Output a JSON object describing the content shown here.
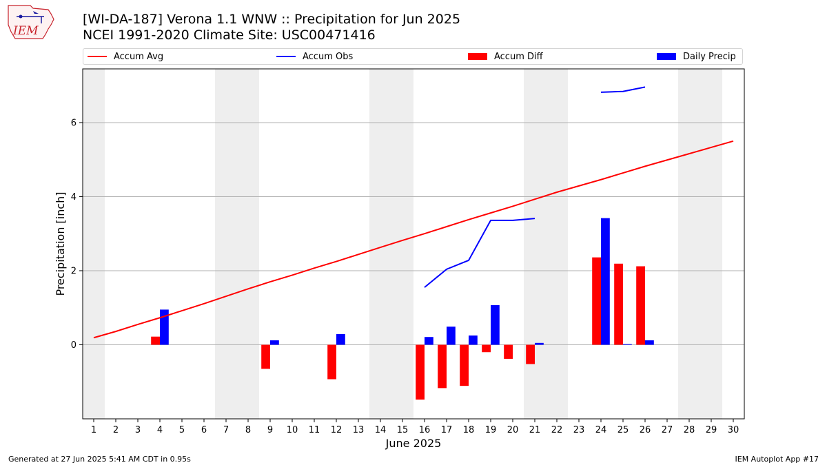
{
  "header": {
    "title_line1": "[WI-DA-187] Verona 1.1 WNW :: Precipitation for Jun 2025",
    "title_line2": "NCEI 1991-2020 Climate Site: USC00471416"
  },
  "logo": {
    "text": "IEM"
  },
  "legend": {
    "items": [
      {
        "label": "Accum Avg",
        "color": "#ff0000",
        "kind": "line"
      },
      {
        "label": "Accum Obs",
        "color": "#0000ff",
        "kind": "line"
      },
      {
        "label": "Accum Diff",
        "color": "#ff0000",
        "kind": "patch"
      },
      {
        "label": "Daily Precip",
        "color": "#0000ff",
        "kind": "patch"
      }
    ]
  },
  "footer": {
    "left": "Generated at 27 Jun 2025 5:41 AM CDT in 0.95s",
    "right": "IEM Autoplot App #17"
  },
  "chart_data": {
    "type": "bar",
    "xlabel": "June 2025",
    "ylabel": "Precipitation [inch]",
    "days": [
      1,
      2,
      3,
      4,
      5,
      6,
      7,
      8,
      9,
      10,
      11,
      12,
      13,
      14,
      15,
      16,
      17,
      18,
      19,
      20,
      21,
      22,
      23,
      24,
      25,
      26,
      27,
      28,
      29,
      30
    ],
    "xlim": [
      0.5,
      30.5
    ],
    "ylim": [
      -2.0,
      7.45
    ],
    "yticks": [
      0,
      2,
      4,
      6
    ],
    "grid": "horizontal",
    "weekend_shading": [
      [
        0.5,
        1.5
      ],
      [
        6.5,
        8.5
      ],
      [
        13.5,
        15.5
      ],
      [
        20.5,
        22.5
      ],
      [
        27.5,
        29.5
      ]
    ],
    "series": [
      {
        "name": "Accum Avg",
        "type": "line",
        "color": "#ff0000",
        "x": [
          1,
          2,
          3,
          4,
          5,
          6,
          7,
          8,
          9,
          10,
          11,
          12,
          13,
          14,
          15,
          16,
          17,
          18,
          19,
          20,
          21,
          22,
          23,
          24,
          25,
          26,
          27,
          28,
          29,
          30
        ],
        "values": [
          0.19,
          0.36,
          0.55,
          0.73,
          0.92,
          1.11,
          1.31,
          1.51,
          1.7,
          1.88,
          2.07,
          2.25,
          2.44,
          2.63,
          2.82,
          3.0,
          3.19,
          3.38,
          3.56,
          3.74,
          3.93,
          4.12,
          4.29,
          4.46,
          4.64,
          4.82,
          4.99,
          5.16,
          5.33,
          5.5
        ]
      },
      {
        "name": "Accum Obs",
        "type": "line",
        "color": "#0000ff",
        "segments": [
          {
            "x": [
              16,
              17,
              18,
              19,
              20,
              21
            ],
            "values": [
              1.55,
              2.04,
              2.28,
              3.36,
              3.36,
              3.41
            ]
          },
          {
            "x": [
              24,
              25,
              26
            ],
            "values": [
              6.82,
              6.84,
              6.96
            ]
          }
        ]
      },
      {
        "name": "Accum Diff",
        "type": "bar",
        "color": "#ff0000",
        "x": [
          4,
          9,
          12,
          16,
          17,
          18,
          19,
          20,
          21,
          24,
          25,
          26
        ],
        "values": [
          0.22,
          -0.65,
          -0.93,
          -1.48,
          -1.17,
          -1.11,
          -0.2,
          -0.38,
          -0.52,
          2.36,
          2.19,
          2.12
        ]
      },
      {
        "name": "Daily Precip",
        "type": "bar",
        "color": "#0000ff",
        "x": [
          4,
          9,
          12,
          16,
          17,
          18,
          19,
          21,
          24,
          25,
          26
        ],
        "values": [
          0.95,
          0.12,
          0.29,
          0.21,
          0.49,
          0.25,
          1.07,
          0.05,
          3.42,
          0.02,
          0.12
        ]
      }
    ]
  }
}
